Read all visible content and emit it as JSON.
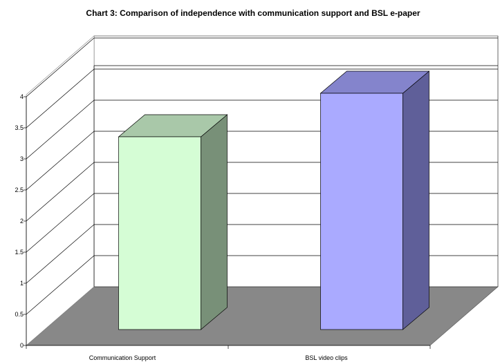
{
  "chart_data": {
    "type": "bar",
    "title": "Chart 3:  Comparison of independence with communication support and BSL e-paper",
    "xlabel": "",
    "ylabel": "",
    "categories": [
      "Communication Support",
      "BSL video clips"
    ],
    "values": [
      3.1,
      3.8
    ],
    "ylim": [
      0,
      4
    ],
    "ytick_labels": [
      "0",
      "0.5",
      "1",
      "1.5",
      "2",
      "2.5",
      "3",
      "3.5",
      "4"
    ],
    "grid": true,
    "three_d": true,
    "colors": {
      "bars": [
        {
          "front": "#d5fdd5",
          "top": "#a9c8a9",
          "side": "#789078"
        },
        {
          "front": "#aaaaff",
          "top": "#8484cc",
          "side": "#5f5f99"
        }
      ],
      "floor": "#888888",
      "wall": "#ffffff",
      "gridline": "#000000"
    }
  }
}
